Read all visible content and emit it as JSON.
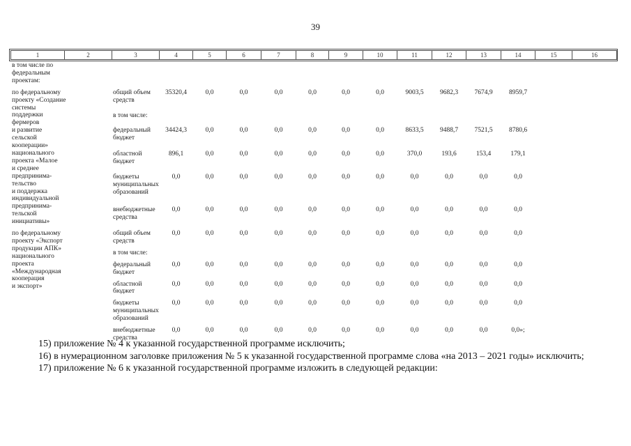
{
  "page": {
    "number": "39"
  },
  "table": {
    "header_cols": [
      "1",
      "2",
      "3",
      "4",
      "5",
      "6",
      "7",
      "8",
      "9",
      "10",
      "11",
      "12",
      "13",
      "14",
      "15",
      "16"
    ],
    "intro_row": "в том числе по\nфедеральным\nпроектам:",
    "blocks": [
      {
        "project": "по федеральному\nпроекту «Создание\nсистемы\nподдержки\nфермеров\nи развитие\nсельской\nкооперации»\nнационального\nпроекта «Малое\nи среднее\nпредпринима-\nтельство\nи поддержка\nиндивидуальной\nпредпринима-\nтельской\nинициативы»",
        "rows": [
          {
            "label": "общий объем\nсредств",
            "values": [
              "35320,4",
              "0,0",
              "0,0",
              "0,0",
              "0,0",
              "0,0",
              "0,0",
              "9003,5",
              "9682,3",
              "7674,9",
              "8959,7",
              "",
              ""
            ]
          },
          {
            "label": "в том числе:",
            "values": [
              "",
              "",
              "",
              "",
              "",
              "",
              "",
              "",
              "",
              "",
              "",
              "",
              ""
            ]
          },
          {
            "label": "федеральный\nбюджет",
            "values": [
              "34424,3",
              "0,0",
              "0,0",
              "0,0",
              "0,0",
              "0,0",
              "0,0",
              "8633,5",
              "9488,7",
              "7521,5",
              "8780,6",
              "",
              ""
            ]
          },
          {
            "label": "областной\nбюджет",
            "values": [
              "896,1",
              "0,0",
              "0,0",
              "0,0",
              "0,0",
              "0,0",
              "0,0",
              "370,0",
              "193,6",
              "153,4",
              "179,1",
              "",
              ""
            ]
          },
          {
            "label": "бюджеты\nмуниципальных\nобразований",
            "values": [
              "0,0",
              "0,0",
              "0,0",
              "0,0",
              "0,0",
              "0,0",
              "0,0",
              "0,0",
              "0,0",
              "0,0",
              "0,0",
              "",
              ""
            ]
          },
          {
            "label": "внебюджетные\nсредства",
            "values": [
              "0,0",
              "0,0",
              "0,0",
              "0,0",
              "0,0",
              "0,0",
              "0,0",
              "0,0",
              "0,0",
              "0,0",
              "0,0",
              "",
              ""
            ]
          }
        ]
      },
      {
        "project": "по федеральному\nпроекту «Экспорт\nпродукции АПК»\nнационального\nпроекта\n«Международная\nкооперация\nи экспорт»",
        "rows": [
          {
            "label": "общий объем\nсредств",
            "values": [
              "0,0",
              "0,0",
              "0,0",
              "0,0",
              "0,0",
              "0,0",
              "0,0",
              "0,0",
              "0,0",
              "0,0",
              "0,0",
              "",
              ""
            ]
          },
          {
            "label": "в том числе:",
            "values": [
              "",
              "",
              "",
              "",
              "",
              "",
              "",
              "",
              "",
              "",
              "",
              "",
              ""
            ]
          },
          {
            "label": "федеральный\nбюджет",
            "values": [
              "0,0",
              "0,0",
              "0,0",
              "0,0",
              "0,0",
              "0,0",
              "0,0",
              "0,0",
              "0,0",
              "0,0",
              "0,0",
              "",
              ""
            ]
          },
          {
            "label": "областной\nбюджет",
            "values": [
              "0,0",
              "0,0",
              "0,0",
              "0,0",
              "0,0",
              "0,0",
              "0,0",
              "0,0",
              "0,0",
              "0,0",
              "0,0",
              "",
              ""
            ]
          },
          {
            "label": "бюджеты\nмуниципальных\nобразований",
            "values": [
              "0,0",
              "0,0",
              "0,0",
              "0,0",
              "0,0",
              "0,0",
              "0,0",
              "0,0",
              "0,0",
              "0,0",
              "0,0",
              "",
              ""
            ]
          },
          {
            "label": "внебюджетные\nсредства",
            "values": [
              "0,0",
              "0,0",
              "0,0",
              "0,0",
              "0,0",
              "0,0",
              "0,0",
              "0,0",
              "0,0",
              "0,0",
              "0,0»;",
              "",
              ""
            ]
          }
        ]
      }
    ]
  },
  "paragraphs": [
    "15) приложение № 4 к указанной государственной программе исключить;",
    "16) в нумерационном заголовке приложения № 5 к указанной государственной программе слова «на 2013 – 2021 годы» исключить;",
    "17) приложение № 6 к указанной государственной программе изложить в следующей редакции:"
  ]
}
